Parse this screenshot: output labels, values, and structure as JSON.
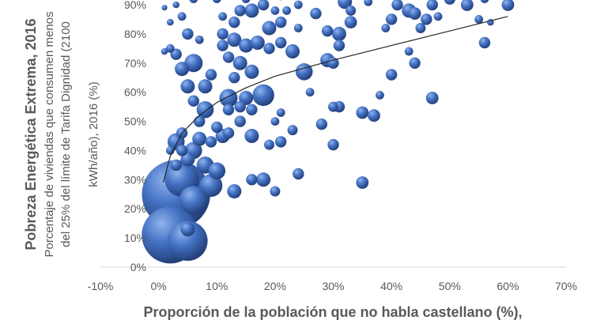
{
  "chart_data": {
    "type": "scatter",
    "subtype": "bubble",
    "xlabel": "Proporción de la población que no habla castellano (%),",
    "ylabel_lines": [
      "Pobreza Energética Extrema, 2016",
      "Porcentaje de viviendas que consumen menos",
      "del 25% del límite de Tarifa Dignidad (2100",
      "kWh/año), 2016 (%)"
    ],
    "xlim": [
      -10,
      70
    ],
    "ylim": [
      0,
      90
    ],
    "x_ticks": [
      "-10%",
      "0%",
      "10%",
      "20%",
      "30%",
      "40%",
      "50%",
      "60%",
      "70%"
    ],
    "y_ticks": [
      "0%",
      "10%",
      "20%",
      "30%",
      "40%",
      "50%",
      "60%",
      "70%",
      "80%",
      "90%"
    ],
    "grid": false,
    "colors": {
      "bubble": "#4472c4",
      "trend": "#262626",
      "axis": "#d9d9d9",
      "text": "#595959"
    },
    "trendline": {
      "type": "logarithmic",
      "points": [
        [
          0.8,
          29
        ],
        [
          2,
          38
        ],
        [
          4,
          46
        ],
        [
          7,
          52
        ],
        [
          10,
          56.5
        ],
        [
          15,
          61.5
        ],
        [
          20,
          65.5
        ],
        [
          30,
          71
        ],
        [
          40,
          76
        ],
        [
          50,
          81
        ],
        [
          60,
          86
        ]
      ]
    },
    "points": [
      {
        "x": 3,
        "y": 25,
        "s": 12
      },
      {
        "x": 2,
        "y": 11,
        "s": 10
      },
      {
        "x": 5,
        "y": 9,
        "s": 7
      },
      {
        "x": 4,
        "y": 30,
        "s": 6
      },
      {
        "x": 6,
        "y": 23,
        "s": 5
      },
      {
        "x": 9,
        "y": 28,
        "s": 4
      },
      {
        "x": 3,
        "y": 43,
        "s": 3
      },
      {
        "x": 6,
        "y": 40,
        "s": 3
      },
      {
        "x": 5,
        "y": 37,
        "s": 2.5
      },
      {
        "x": 8,
        "y": 35,
        "s": 3
      },
      {
        "x": 10,
        "y": 33,
        "s": 3
      },
      {
        "x": 5,
        "y": 13,
        "s": 2.5
      },
      {
        "x": 4,
        "y": 46,
        "s": 2
      },
      {
        "x": 7,
        "y": 50,
        "s": 2
      },
      {
        "x": 8,
        "y": 54,
        "s": 3
      },
      {
        "x": 6,
        "y": 57,
        "s": 2
      },
      {
        "x": 5,
        "y": 62,
        "s": 2.5
      },
      {
        "x": 8,
        "y": 62,
        "s": 2.5
      },
      {
        "x": 6,
        "y": 70,
        "s": 3.2
      },
      {
        "x": 4,
        "y": 68,
        "s": 2.5
      },
      {
        "x": 9,
        "y": 66,
        "s": 2
      },
      {
        "x": 3,
        "y": 73,
        "s": 2
      },
      {
        "x": 2,
        "y": 75,
        "s": 1.5
      },
      {
        "x": 1,
        "y": 74,
        "s": 1.2
      },
      {
        "x": 5,
        "y": 80,
        "s": 2
      },
      {
        "x": 7,
        "y": 78,
        "s": 1.5
      },
      {
        "x": 4,
        "y": 86,
        "s": 1.5
      },
      {
        "x": 2,
        "y": 84,
        "s": 1.2
      },
      {
        "x": 6,
        "y": 92,
        "s": 1.5
      },
      {
        "x": 1,
        "y": 89,
        "s": 1
      },
      {
        "x": 1,
        "y": 93,
        "s": 1
      },
      {
        "x": 3,
        "y": 90,
        "s": 1.2
      },
      {
        "x": 11,
        "y": 45,
        "s": 2.5
      },
      {
        "x": 10,
        "y": 48,
        "s": 2
      },
      {
        "x": 9,
        "y": 43,
        "s": 2
      },
      {
        "x": 12,
        "y": 46,
        "s": 2
      },
      {
        "x": 7,
        "y": 44,
        "s": 2.5
      },
      {
        "x": 4,
        "y": 40,
        "s": 2
      },
      {
        "x": 3,
        "y": 35,
        "s": 2
      },
      {
        "x": 2,
        "y": 40,
        "s": 1.5
      },
      {
        "x": 12,
        "y": 58,
        "s": 3.2
      },
      {
        "x": 15,
        "y": 58,
        "s": 2.5
      },
      {
        "x": 18,
        "y": 59,
        "s": 3.8
      },
      {
        "x": 14,
        "y": 55,
        "s": 2
      },
      {
        "x": 16,
        "y": 54,
        "s": 2
      },
      {
        "x": 12,
        "y": 54,
        "s": 2
      },
      {
        "x": 13,
        "y": 65,
        "s": 2
      },
      {
        "x": 16,
        "y": 67,
        "s": 2.5
      },
      {
        "x": 14,
        "y": 70,
        "s": 2.5
      },
      {
        "x": 12,
        "y": 72,
        "s": 2
      },
      {
        "x": 11,
        "y": 76,
        "s": 2
      },
      {
        "x": 13,
        "y": 78,
        "s": 2.5
      },
      {
        "x": 11,
        "y": 80,
        "s": 2
      },
      {
        "x": 15,
        "y": 76,
        "s": 2.5
      },
      {
        "x": 17,
        "y": 77,
        "s": 2.5
      },
      {
        "x": 19,
        "y": 75,
        "s": 2
      },
      {
        "x": 21,
        "y": 77,
        "s": 2
      },
      {
        "x": 23,
        "y": 74,
        "s": 2.5
      },
      {
        "x": 19,
        "y": 82,
        "s": 2.5
      },
      {
        "x": 21,
        "y": 84,
        "s": 2
      },
      {
        "x": 24,
        "y": 82,
        "s": 1.5
      },
      {
        "x": 13,
        "y": 84,
        "s": 2
      },
      {
        "x": 14,
        "y": 88,
        "s": 2
      },
      {
        "x": 16,
        "y": 88,
        "s": 2.5
      },
      {
        "x": 11,
        "y": 86,
        "s": 1.5
      },
      {
        "x": 18,
        "y": 90,
        "s": 2
      },
      {
        "x": 20,
        "y": 88,
        "s": 1.5
      },
      {
        "x": 22,
        "y": 88,
        "s": 1.5
      },
      {
        "x": 24,
        "y": 90,
        "s": 1.5
      },
      {
        "x": 15,
        "y": 92,
        "s": 1.5
      },
      {
        "x": 21,
        "y": 93,
        "s": 1.5
      },
      {
        "x": 10,
        "y": 92,
        "s": 1.5
      },
      {
        "x": 13,
        "y": 26,
        "s": 2.5
      },
      {
        "x": 16,
        "y": 30,
        "s": 2
      },
      {
        "x": 18,
        "y": 30,
        "s": 2.5
      },
      {
        "x": 20,
        "y": 26,
        "s": 1.8
      },
      {
        "x": 24,
        "y": 32,
        "s": 2
      },
      {
        "x": 35,
        "y": 29,
        "s": 2.2
      },
      {
        "x": 16,
        "y": 45,
        "s": 2.5
      },
      {
        "x": 19,
        "y": 42,
        "s": 1.8
      },
      {
        "x": 21,
        "y": 43,
        "s": 2
      },
      {
        "x": 23,
        "y": 47,
        "s": 1.8
      },
      {
        "x": 20,
        "y": 50,
        "s": 1.5
      },
      {
        "x": 21,
        "y": 53,
        "s": 1.5
      },
      {
        "x": 14,
        "y": 50,
        "s": 2
      },
      {
        "x": 28,
        "y": 49,
        "s": 2
      },
      {
        "x": 30,
        "y": 42,
        "s": 2
      },
      {
        "x": 30,
        "y": 55,
        "s": 1.8
      },
      {
        "x": 31,
        "y": 55,
        "s": 2
      },
      {
        "x": 35,
        "y": 53,
        "s": 2.2
      },
      {
        "x": 37,
        "y": 52,
        "s": 2.2
      },
      {
        "x": 38,
        "y": 59,
        "s": 1.5
      },
      {
        "x": 47,
        "y": 58,
        "s": 2.2
      },
      {
        "x": 25,
        "y": 67,
        "s": 3
      },
      {
        "x": 26,
        "y": 60,
        "s": 1.5
      },
      {
        "x": 29,
        "y": 71,
        "s": 2.5
      },
      {
        "x": 30,
        "y": 70,
        "s": 2
      },
      {
        "x": 40,
        "y": 66,
        "s": 2
      },
      {
        "x": 44,
        "y": 70,
        "s": 2
      },
      {
        "x": 43,
        "y": 74,
        "s": 1.5
      },
      {
        "x": 27,
        "y": 87,
        "s": 2
      },
      {
        "x": 29,
        "y": 81,
        "s": 2
      },
      {
        "x": 31,
        "y": 80,
        "s": 2.5
      },
      {
        "x": 31,
        "y": 76,
        "s": 2
      },
      {
        "x": 33,
        "y": 84,
        "s": 2.2
      },
      {
        "x": 33,
        "y": 88,
        "s": 1.8
      },
      {
        "x": 32,
        "y": 91,
        "s": 2.5
      },
      {
        "x": 36,
        "y": 91,
        "s": 1.5
      },
      {
        "x": 39,
        "y": 82,
        "s": 1.5
      },
      {
        "x": 40,
        "y": 85,
        "s": 2
      },
      {
        "x": 41,
        "y": 90,
        "s": 2
      },
      {
        "x": 43,
        "y": 88,
        "s": 2.5
      },
      {
        "x": 44,
        "y": 87,
        "s": 2.2
      },
      {
        "x": 46,
        "y": 85,
        "s": 2
      },
      {
        "x": 48,
        "y": 86,
        "s": 1.5
      },
      {
        "x": 45,
        "y": 82,
        "s": 1.8
      },
      {
        "x": 47,
        "y": 90,
        "s": 2
      },
      {
        "x": 50,
        "y": 92,
        "s": 2
      },
      {
        "x": 53,
        "y": 90,
        "s": 2.2
      },
      {
        "x": 56,
        "y": 92,
        "s": 1.5
      },
      {
        "x": 55,
        "y": 85,
        "s": 1.5
      },
      {
        "x": 56,
        "y": 77,
        "s": 2
      },
      {
        "x": 60,
        "y": 90,
        "s": 2.2
      },
      {
        "x": 57,
        "y": 84,
        "s": 1.2
      }
    ]
  }
}
